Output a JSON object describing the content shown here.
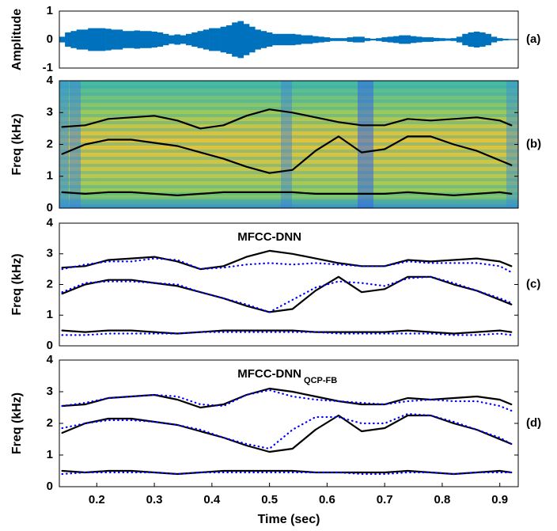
{
  "chart_data": [
    {
      "type": "waveform",
      "panel_label": "(a)",
      "ylabel": "Amplitude",
      "ylim": [
        -1,
        1
      ],
      "yticks": [
        -1,
        0,
        1
      ],
      "xlim": [
        0.135,
        0.932
      ],
      "color": "#0072bd",
      "x": [
        0.14,
        0.15,
        0.16,
        0.17,
        0.18,
        0.19,
        0.2,
        0.21,
        0.22,
        0.23,
        0.24,
        0.25,
        0.26,
        0.27,
        0.28,
        0.29,
        0.3,
        0.31,
        0.32,
        0.33,
        0.34,
        0.35,
        0.36,
        0.37,
        0.38,
        0.39,
        0.4,
        0.41,
        0.42,
        0.43,
        0.44,
        0.45,
        0.46,
        0.47,
        0.48,
        0.49,
        0.5,
        0.51,
        0.52,
        0.53,
        0.54,
        0.55,
        0.56,
        0.57,
        0.58,
        0.59,
        0.6,
        0.61,
        0.62,
        0.63,
        0.64,
        0.65,
        0.66,
        0.67,
        0.68,
        0.69,
        0.7,
        0.71,
        0.72,
        0.73,
        0.74,
        0.75,
        0.76,
        0.77,
        0.78,
        0.79,
        0.8,
        0.81,
        0.82,
        0.83,
        0.84,
        0.85,
        0.86,
        0.87,
        0.88,
        0.89,
        0.9,
        0.91,
        0.92
      ],
      "values": [
        0.1,
        0.25,
        0.3,
        0.35,
        0.35,
        0.4,
        0.4,
        0.4,
        0.38,
        0.35,
        0.35,
        0.3,
        0.3,
        0.32,
        0.3,
        0.3,
        0.28,
        0.25,
        0.2,
        0.15,
        0.18,
        0.15,
        0.2,
        0.25,
        0.3,
        0.35,
        0.4,
        0.4,
        0.45,
        0.5,
        0.6,
        0.65,
        0.55,
        0.45,
        0.35,
        0.3,
        0.25,
        0.2,
        0.2,
        0.2,
        0.2,
        0.18,
        0.15,
        0.15,
        0.12,
        0.1,
        0.08,
        0.05,
        0.05,
        0.05,
        0.08,
        0.1,
        0.1,
        0.05,
        0.03,
        0.05,
        0.08,
        0.1,
        0.12,
        0.15,
        0.15,
        0.12,
        0.1,
        0.08,
        0.08,
        0.06,
        0.05,
        0.04,
        0.05,
        0.1,
        0.2,
        0.25,
        0.28,
        0.25,
        0.2,
        0.1,
        0.05,
        0.03,
        0.02
      ]
    },
    {
      "type": "spectrogram",
      "panel_label": "(b)",
      "ylabel": "Freq (kHz)",
      "ylim": [
        0,
        4
      ],
      "yticks": [
        0,
        1,
        2,
        3,
        4
      ],
      "xlim": [
        0.135,
        0.932
      ],
      "x": [
        0.14,
        0.18,
        0.22,
        0.26,
        0.3,
        0.34,
        0.38,
        0.42,
        0.46,
        0.5,
        0.54,
        0.58,
        0.62,
        0.66,
        0.7,
        0.74,
        0.78,
        0.82,
        0.86,
        0.9,
        0.92
      ],
      "series": [
        {
          "color": "#000000",
          "style": "solid",
          "values": [
            2.55,
            2.6,
            2.8,
            2.85,
            2.9,
            2.75,
            2.5,
            2.6,
            2.9,
            3.1,
            3.0,
            2.85,
            2.7,
            2.6,
            2.6,
            2.8,
            2.75,
            2.8,
            2.85,
            2.75,
            2.6
          ]
        },
        {
          "color": "#000000",
          "style": "solid",
          "values": [
            1.7,
            2.0,
            2.15,
            2.15,
            2.05,
            1.95,
            1.75,
            1.55,
            1.3,
            1.1,
            1.2,
            1.8,
            2.25,
            1.75,
            1.85,
            2.25,
            2.25,
            2.0,
            1.8,
            1.5,
            1.35
          ]
        },
        {
          "color": "#000000",
          "style": "solid",
          "values": [
            0.5,
            0.45,
            0.5,
            0.5,
            0.45,
            0.4,
            0.45,
            0.5,
            0.5,
            0.5,
            0.5,
            0.45,
            0.45,
            0.45,
            0.45,
            0.5,
            0.45,
            0.4,
            0.45,
            0.5,
            0.45
          ]
        }
      ]
    },
    {
      "type": "line",
      "panel_label": "(c)",
      "title": "MFCC-DNN",
      "ylabel": "Freq (kHz)",
      "ylim": [
        0,
        4
      ],
      "yticks": [
        0,
        1,
        2,
        3,
        4
      ],
      "xlim": [
        0.135,
        0.932
      ],
      "x": [
        0.14,
        0.18,
        0.22,
        0.26,
        0.3,
        0.34,
        0.38,
        0.42,
        0.46,
        0.5,
        0.54,
        0.58,
        0.62,
        0.66,
        0.7,
        0.74,
        0.78,
        0.82,
        0.86,
        0.9,
        0.92
      ],
      "series": [
        {
          "color": "#000000",
          "style": "solid",
          "values": [
            2.55,
            2.6,
            2.8,
            2.85,
            2.9,
            2.75,
            2.5,
            2.6,
            2.9,
            3.1,
            3.0,
            2.85,
            2.7,
            2.6,
            2.6,
            2.8,
            2.75,
            2.8,
            2.85,
            2.75,
            2.6
          ]
        },
        {
          "color": "#000000",
          "style": "solid",
          "values": [
            1.7,
            2.0,
            2.15,
            2.15,
            2.05,
            1.95,
            1.75,
            1.55,
            1.3,
            1.1,
            1.2,
            1.8,
            2.25,
            1.75,
            1.85,
            2.25,
            2.25,
            2.0,
            1.8,
            1.5,
            1.35
          ]
        },
        {
          "color": "#000000",
          "style": "solid",
          "values": [
            0.5,
            0.45,
            0.5,
            0.5,
            0.45,
            0.4,
            0.45,
            0.5,
            0.5,
            0.5,
            0.5,
            0.45,
            0.45,
            0.45,
            0.45,
            0.5,
            0.45,
            0.4,
            0.45,
            0.5,
            0.45
          ]
        },
        {
          "color": "#0000ff",
          "style": "dotted",
          "values": [
            2.5,
            2.65,
            2.75,
            2.75,
            2.85,
            2.8,
            2.5,
            2.55,
            2.65,
            2.7,
            2.65,
            2.7,
            2.65,
            2.6,
            2.6,
            2.75,
            2.7,
            2.7,
            2.7,
            2.6,
            2.4
          ]
        },
        {
          "color": "#0000ff",
          "style": "dotted",
          "values": [
            1.75,
            2.05,
            2.1,
            2.1,
            2.05,
            2.0,
            1.75,
            1.55,
            1.35,
            1.1,
            1.5,
            1.9,
            2.1,
            2.05,
            1.95,
            2.2,
            2.25,
            2.05,
            1.8,
            1.55,
            1.4
          ]
        },
        {
          "color": "#0000ff",
          "style": "dotted",
          "values": [
            0.35,
            0.35,
            0.4,
            0.4,
            0.4,
            0.4,
            0.45,
            0.45,
            0.45,
            0.45,
            0.45,
            0.45,
            0.4,
            0.4,
            0.4,
            0.4,
            0.4,
            0.35,
            0.35,
            0.4,
            0.35
          ]
        }
      ]
    },
    {
      "type": "line",
      "panel_label": "(d)",
      "title": "MFCC-DNN",
      "title_sub": "QCP-FB",
      "ylabel": "Freq (kHz)",
      "xlabel": "Time (sec)",
      "ylim": [
        0,
        4
      ],
      "yticks": [
        0,
        1,
        2,
        3,
        4
      ],
      "xlim": [
        0.135,
        0.932
      ],
      "xticks": [
        0.2,
        0.3,
        0.4,
        0.5,
        0.6,
        0.7,
        0.8,
        0.9
      ],
      "x": [
        0.14,
        0.18,
        0.22,
        0.26,
        0.3,
        0.34,
        0.38,
        0.42,
        0.46,
        0.5,
        0.54,
        0.58,
        0.62,
        0.66,
        0.7,
        0.74,
        0.78,
        0.82,
        0.86,
        0.9,
        0.92
      ],
      "series": [
        {
          "color": "#000000",
          "style": "solid",
          "values": [
            2.55,
            2.6,
            2.8,
            2.85,
            2.9,
            2.75,
            2.5,
            2.6,
            2.9,
            3.1,
            3.0,
            2.85,
            2.7,
            2.6,
            2.6,
            2.8,
            2.75,
            2.8,
            2.85,
            2.75,
            2.6
          ]
        },
        {
          "color": "#000000",
          "style": "solid",
          "values": [
            1.7,
            2.0,
            2.15,
            2.15,
            2.05,
            1.95,
            1.75,
            1.55,
            1.3,
            1.1,
            1.2,
            1.8,
            2.25,
            1.75,
            1.85,
            2.25,
            2.25,
            2.0,
            1.8,
            1.5,
            1.35
          ]
        },
        {
          "color": "#000000",
          "style": "solid",
          "values": [
            0.5,
            0.45,
            0.5,
            0.5,
            0.45,
            0.4,
            0.45,
            0.5,
            0.5,
            0.5,
            0.5,
            0.45,
            0.45,
            0.45,
            0.45,
            0.5,
            0.45,
            0.4,
            0.45,
            0.5,
            0.45
          ]
        },
        {
          "color": "#0000ff",
          "style": "dotted",
          "values": [
            2.55,
            2.65,
            2.8,
            2.85,
            2.9,
            2.85,
            2.6,
            2.55,
            2.9,
            3.05,
            2.85,
            2.75,
            2.7,
            2.65,
            2.6,
            2.7,
            2.75,
            2.7,
            2.7,
            2.55,
            2.4
          ]
        },
        {
          "color": "#0000ff",
          "style": "dotted",
          "values": [
            1.85,
            2.0,
            2.1,
            2.1,
            2.05,
            1.95,
            1.8,
            1.55,
            1.35,
            1.2,
            1.8,
            2.2,
            2.2,
            2.0,
            2.0,
            2.3,
            2.25,
            2.05,
            1.8,
            1.55,
            1.35
          ]
        },
        {
          "color": "#0000ff",
          "style": "dotted",
          "values": [
            0.4,
            0.45,
            0.45,
            0.45,
            0.45,
            0.4,
            0.45,
            0.45,
            0.45,
            0.45,
            0.45,
            0.45,
            0.45,
            0.4,
            0.4,
            0.45,
            0.45,
            0.4,
            0.45,
            0.45,
            0.45
          ]
        }
      ]
    }
  ]
}
